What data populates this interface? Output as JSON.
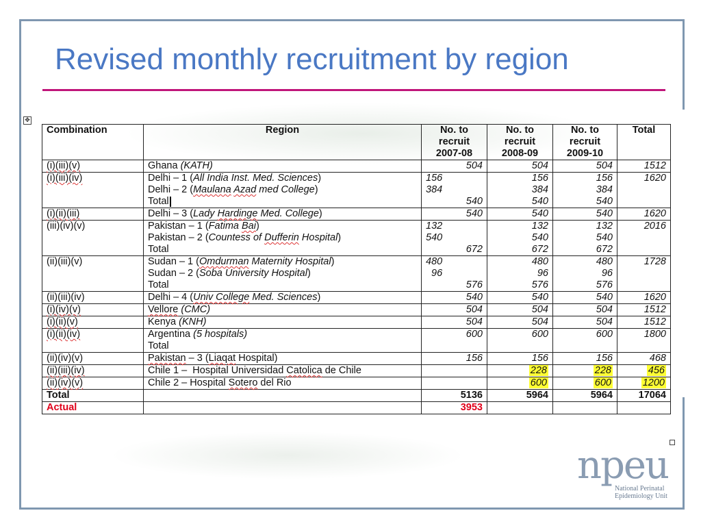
{
  "slide": {
    "title": "Revised monthly recruitment by region",
    "logo": {
      "name": "npeu",
      "line1": "National Perinatal",
      "line2": "Epidemiology Unit"
    }
  },
  "table": {
    "headers": {
      "combination": "Combination",
      "region": "Region",
      "y1": [
        "No. to",
        "recruit",
        "2007-08"
      ],
      "y2": [
        "No. to",
        "recruit",
        "2008-09"
      ],
      "y3": [
        "No. to",
        "recruit",
        "2009-10"
      ],
      "total": "Total"
    },
    "rows": [
      {
        "comb": "(i)(iii)(v)",
        "region": [
          "Ghana (KATH)"
        ],
        "y1": [
          "504"
        ],
        "y2": [
          "504"
        ],
        "y3": [
          "504"
        ],
        "total": "1512"
      },
      {
        "comb": "(i)(iii)(iv)",
        "region": [
          "Delhi – 1 (All India Inst. Med. Sciences)",
          "Delhi – 2 (Maulana Azad med College)",
          "Total"
        ],
        "y1": [
          "156",
          "384",
          "540"
        ],
        "y2": [
          "156",
          "384",
          "540"
        ],
        "y3": [
          "156",
          "384",
          "540"
        ],
        "total": "1620"
      },
      {
        "comb": "(i)(ii)(iii)",
        "region": [
          "Delhi – 3 (Lady Hardinge Med. College)"
        ],
        "y1": [
          "540"
        ],
        "y2": [
          "540"
        ],
        "y3": [
          "540"
        ],
        "total": "1620"
      },
      {
        "comb": "(iii)(iv)(v)",
        "region": [
          "Pakistan – 1 (Fatima Bai)",
          "Pakistan – 2 (Countess of Dufferin Hospital)",
          "Total"
        ],
        "y1": [
          "132",
          "540",
          "672"
        ],
        "y2": [
          "132",
          "540",
          "672"
        ],
        "y3": [
          "132",
          "540",
          "672"
        ],
        "total": "2016"
      },
      {
        "comb": "(ii)(iii)(v)",
        "region": [
          "Sudan – 1 (Omdurman Maternity Hospital)",
          "Sudan – 2 (Soba University Hospital)",
          "Total"
        ],
        "y1": [
          "480",
          "96",
          "576"
        ],
        "y2": [
          "480",
          "96",
          "576"
        ],
        "y3": [
          "480",
          "96",
          "576"
        ],
        "total": "1728"
      },
      {
        "comb": "(ii)(iii)(iv)",
        "region": [
          "Delhi – 4 (Univ College Med. Sciences)"
        ],
        "y1": [
          "540"
        ],
        "y2": [
          "540"
        ],
        "y3": [
          "540"
        ],
        "total": "1620"
      },
      {
        "comb": "(i)(iv)(v)",
        "region": [
          "Vellore (CMC)"
        ],
        "y1": [
          "504"
        ],
        "y2": [
          "504"
        ],
        "y3": [
          "504"
        ],
        "total": "1512"
      },
      {
        "comb": "(i)(ii)(v)",
        "region": [
          "Kenya (KNH)"
        ],
        "y1": [
          "504"
        ],
        "y2": [
          "504"
        ],
        "y3": [
          "504"
        ],
        "total": "1512"
      },
      {
        "comb": "(i)(ii)(iv)",
        "region": [
          "Argentina (5 hospitals)",
          "Total"
        ],
        "y1": [
          "600"
        ],
        "y2": [
          "600"
        ],
        "y3": [
          "600"
        ],
        "total": "1800"
      },
      {
        "comb": "(ii)(iv)(v)",
        "region": [
          "Pakistan – 3 (Liaqat Hospital)"
        ],
        "y1": [
          "156"
        ],
        "y2": [
          "156"
        ],
        "y3": [
          "156"
        ],
        "total": "468"
      },
      {
        "comb": "(ii)(iii)(iv)",
        "region": [
          "Chile 1 –  Hospital Universidad Catolica de Chile"
        ],
        "y1": [
          ""
        ],
        "y2": [
          "228"
        ],
        "y3": [
          "228"
        ],
        "total": "456"
      },
      {
        "comb": "(ii)(iv)(v)",
        "region": [
          "Chile 2 – Hospital Sotero del Rio"
        ],
        "y1": [
          ""
        ],
        "y2": [
          "600"
        ],
        "y3": [
          "600"
        ],
        "total": "1200"
      }
    ],
    "total_row": {
      "label": "Total",
      "y1": "5136",
      "y2": "5964",
      "y3": "5964",
      "total": "17064"
    },
    "actual_row": {
      "label": "Actual",
      "y1": "3953"
    }
  },
  "colors": {
    "title": "#4a78c4",
    "rule": "#c0157a",
    "frame": "#7f97b0",
    "highlight": "#ffff33",
    "actual": "#e0001a"
  }
}
